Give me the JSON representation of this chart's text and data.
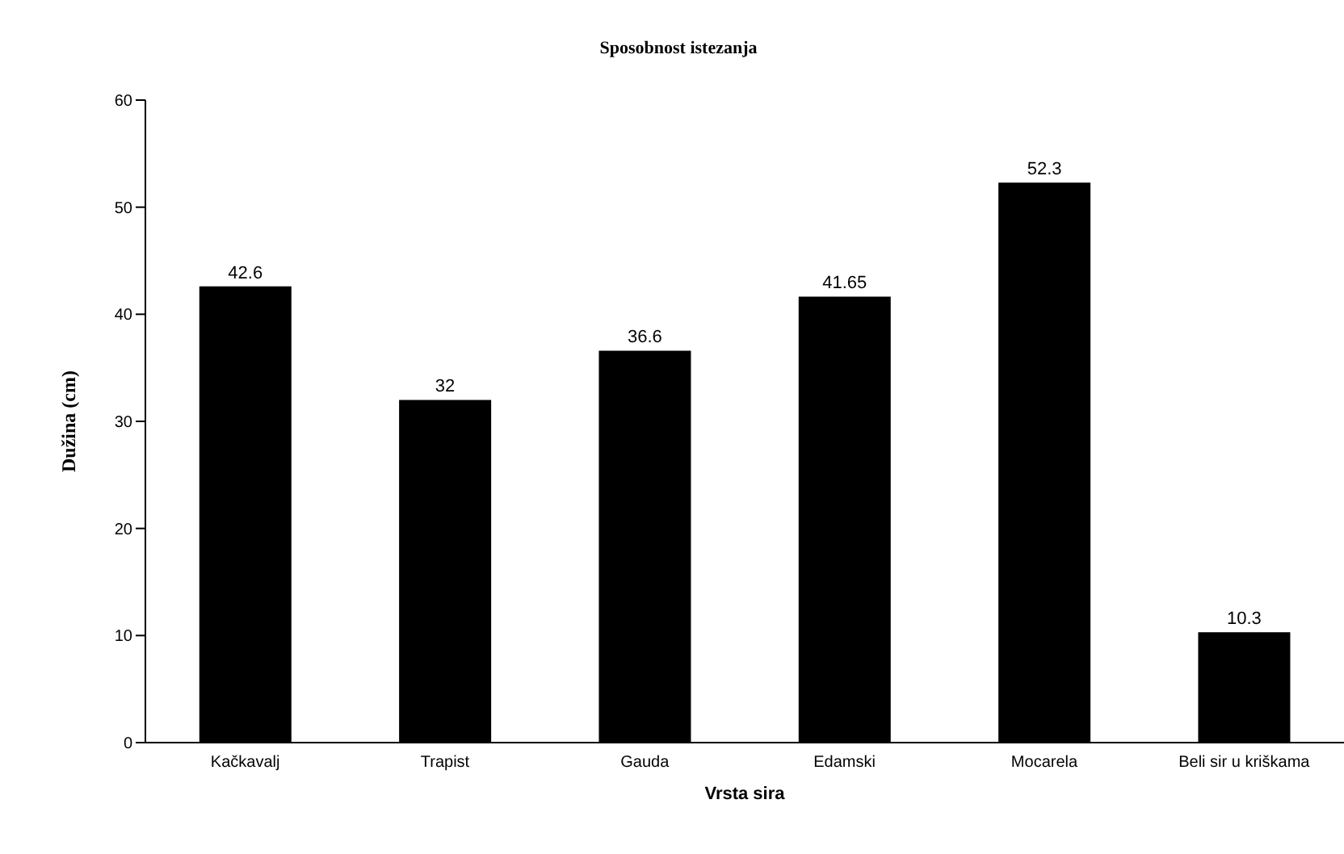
{
  "chart_data": {
    "type": "bar",
    "title": "Sposobnost istezanja",
    "xlabel": "Vrsta sira",
    "ylabel": "Dužina (cm)",
    "categories": [
      "Kačkavalj",
      "Trapist",
      "Gauda",
      "Edamski",
      "Mocarela",
      "Beli sir u kriškama"
    ],
    "values": [
      42.6,
      32,
      36.6,
      41.65,
      52.3,
      10.3
    ],
    "color": "#000000",
    "ylim": [
      0,
      60
    ],
    "yticks": [
      0,
      10,
      20,
      30,
      40,
      50,
      60
    ],
    "data_labels": true
  }
}
